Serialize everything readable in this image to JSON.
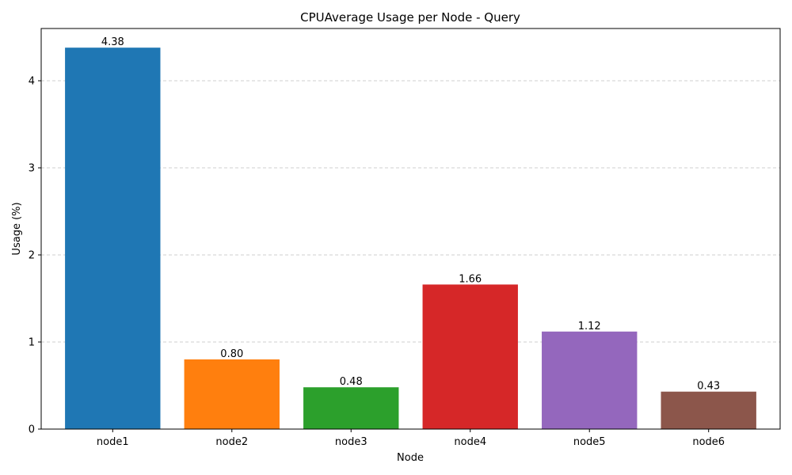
{
  "chart_data": {
    "type": "bar",
    "title": "CPUAverage Usage per Node - Query",
    "xlabel": "Node",
    "ylabel": "Usage (%)",
    "categories": [
      "node1",
      "node2",
      "node3",
      "node4",
      "node5",
      "node6"
    ],
    "values": [
      4.38,
      0.8,
      0.48,
      1.66,
      1.12,
      0.43
    ],
    "value_labels": [
      "4.38",
      "0.80",
      "0.48",
      "1.66",
      "1.12",
      "0.43"
    ],
    "colors": [
      "#1f77b4",
      "#ff7f0e",
      "#2ca02c",
      "#d62728",
      "#9467bd",
      "#8c564b"
    ],
    "ylim": [
      0,
      4.6
    ],
    "yticks": [
      0,
      1,
      2,
      3,
      4
    ],
    "grid": "y-dashed",
    "legend": "none"
  }
}
